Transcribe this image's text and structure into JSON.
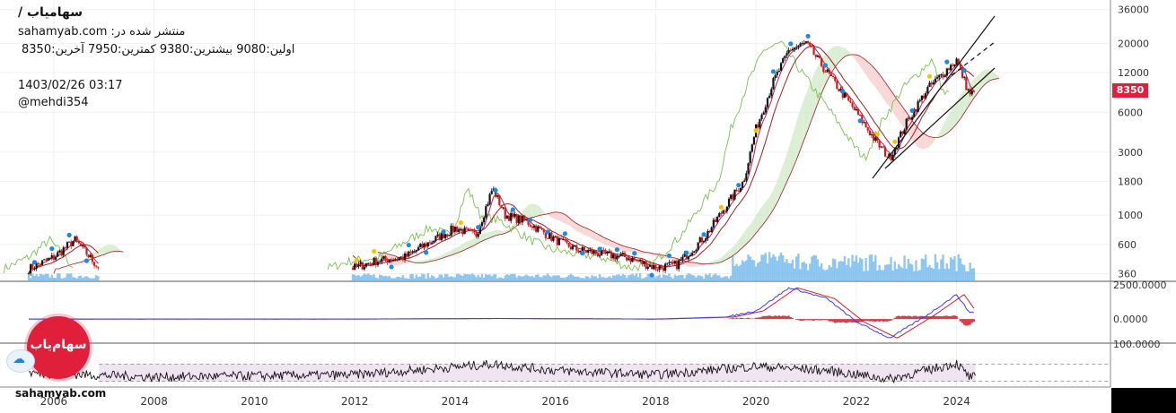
{
  "header": {
    "title": "سهامیاب /",
    "published": "منتشر شده در: sahamyab.com",
    "ohlc": "اولین:9080  بیشترین:9380  کمترین:7950  آخرین:8350",
    "datetime": "1403/02/26 03:17",
    "author": "@mehdi354"
  },
  "badge": {
    "last": "8350",
    "color": "#e0203a"
  },
  "logo": {
    "text": "سهام‌یاب",
    "site": "sahamyab.com"
  },
  "icons": {
    "logo": "sahamyab-logo-icon",
    "cloud": "cloud-upload-icon"
  },
  "colors": {
    "candle_up": "#111111",
    "candle_down": "#d01b1b",
    "tenkan": "#c2185b",
    "kijun": "#9c2020",
    "chikou": "#7cbf4e",
    "cloud_bull": "#cfe8c4",
    "cloud_bear": "#f6c9c9",
    "volume": "#6bb6ec",
    "macd": "#3b3bff",
    "signal": "#d0202e",
    "rsi": "#111111",
    "rsi_band": "#f0e4f0"
  },
  "chart_data": [
    {
      "type": "line",
      "name": "price",
      "scale": "log",
      "x": [
        "2005-06",
        "2006-01",
        "2006-06",
        "2007-01",
        "2012-01",
        "2012-06",
        "2013-01",
        "2013-06",
        "2014-01",
        "2014-06",
        "2014-10",
        "2015-01",
        "2015-06",
        "2016-01",
        "2016-06",
        "2017-01",
        "2017-06",
        "2018-01",
        "2018-06",
        "2019-01",
        "2019-06",
        "2019-10",
        "2020-01",
        "2020-05",
        "2020-09",
        "2021-01",
        "2021-06",
        "2022-01",
        "2022-06",
        "2022-09",
        "2023-01",
        "2023-06",
        "2024-01",
        "2024-04"
      ],
      "values": [
        380,
        480,
        650,
        360,
        400,
        450,
        480,
        600,
        800,
        700,
        1600,
        1000,
        900,
        650,
        550,
        500,
        480,
        400,
        420,
        700,
        1200,
        1800,
        4500,
        10000,
        18000,
        20000,
        12000,
        6000,
        3500,
        2700,
        5000,
        9000,
        15000,
        8350
      ],
      "xticks": [
        "2006",
        "2008",
        "2010",
        "2012",
        "2014",
        "2016",
        "2018",
        "2020",
        "2022",
        "2024"
      ],
      "yticks": [
        "36000",
        "20000",
        "12000",
        "6000",
        "3000",
        "1800",
        "1000",
        "600",
        "360"
      ],
      "ylim": [
        320,
        40000
      ],
      "grid": true
    },
    {
      "type": "line",
      "name": "macd",
      "yticks": [
        "2500.0000",
        "0.0000"
      ],
      "x": [
        "2005-06",
        "2012-01",
        "2014-10",
        "2018-01",
        "2019-06",
        "2020-01",
        "2020-09",
        "2021-06",
        "2022-01",
        "2022-09",
        "2023-06",
        "2024-01",
        "2024-04"
      ],
      "values": [
        0,
        0,
        40,
        0,
        150,
        600,
        2300,
        1500,
        -200,
        -1400,
        300,
        1800,
        500
      ]
    },
    {
      "type": "line",
      "name": "rsi",
      "yticks": [
        "100.0000"
      ],
      "x": [
        "2005-06",
        "2008-01",
        "2012-01",
        "2014-10",
        "2016-01",
        "2018-01",
        "2020-01",
        "2021-06",
        "2022-09",
        "2024-01",
        "2024-04"
      ],
      "values": [
        50,
        40,
        45,
        70,
        55,
        45,
        65,
        55,
        35,
        72,
        40
      ]
    }
  ]
}
